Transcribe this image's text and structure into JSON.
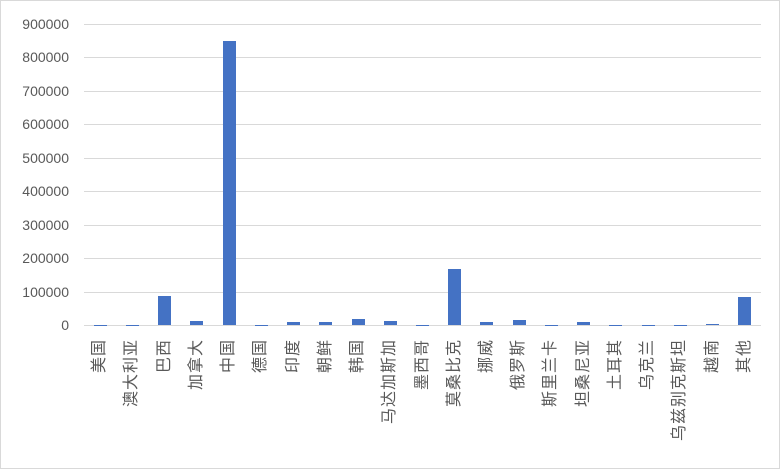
{
  "chart_data": {
    "type": "bar",
    "title": "",
    "xlabel": "",
    "ylabel": "",
    "legend": "none",
    "grid": "horizontal",
    "categories": [
      "美国",
      "澳大利亚",
      "巴西",
      "加拿大",
      "中国",
      "德国",
      "印度",
      "朝鲜",
      "韩国",
      "马达加斯加",
      "墨西哥",
      "莫桑比克",
      "挪威",
      "俄罗斯",
      "斯里兰卡",
      "坦桑尼亚",
      "土耳其",
      "乌克兰",
      "乌兹别克斯坦",
      "越南",
      "其他"
    ],
    "values": [
      1000,
      1000,
      87000,
      13000,
      848000,
      1000,
      9000,
      9000,
      18000,
      13000,
      1000,
      167000,
      9000,
      16000,
      1000,
      9000,
      500,
      500,
      500,
      4000,
      84000
    ],
    "ylim": [
      0,
      900000
    ],
    "ytick_interval": 100000,
    "ytick_labels": [
      "900000",
      "800000",
      "700000",
      "600000",
      "500000",
      "400000",
      "300000",
      "200000",
      "100000",
      "0"
    ],
    "colors": {
      "bar": "#4472C4",
      "gridline": "#D9D9D9",
      "axis_text": "#595959",
      "background": "#FFFFFF",
      "border": "#D9D9D9"
    }
  }
}
